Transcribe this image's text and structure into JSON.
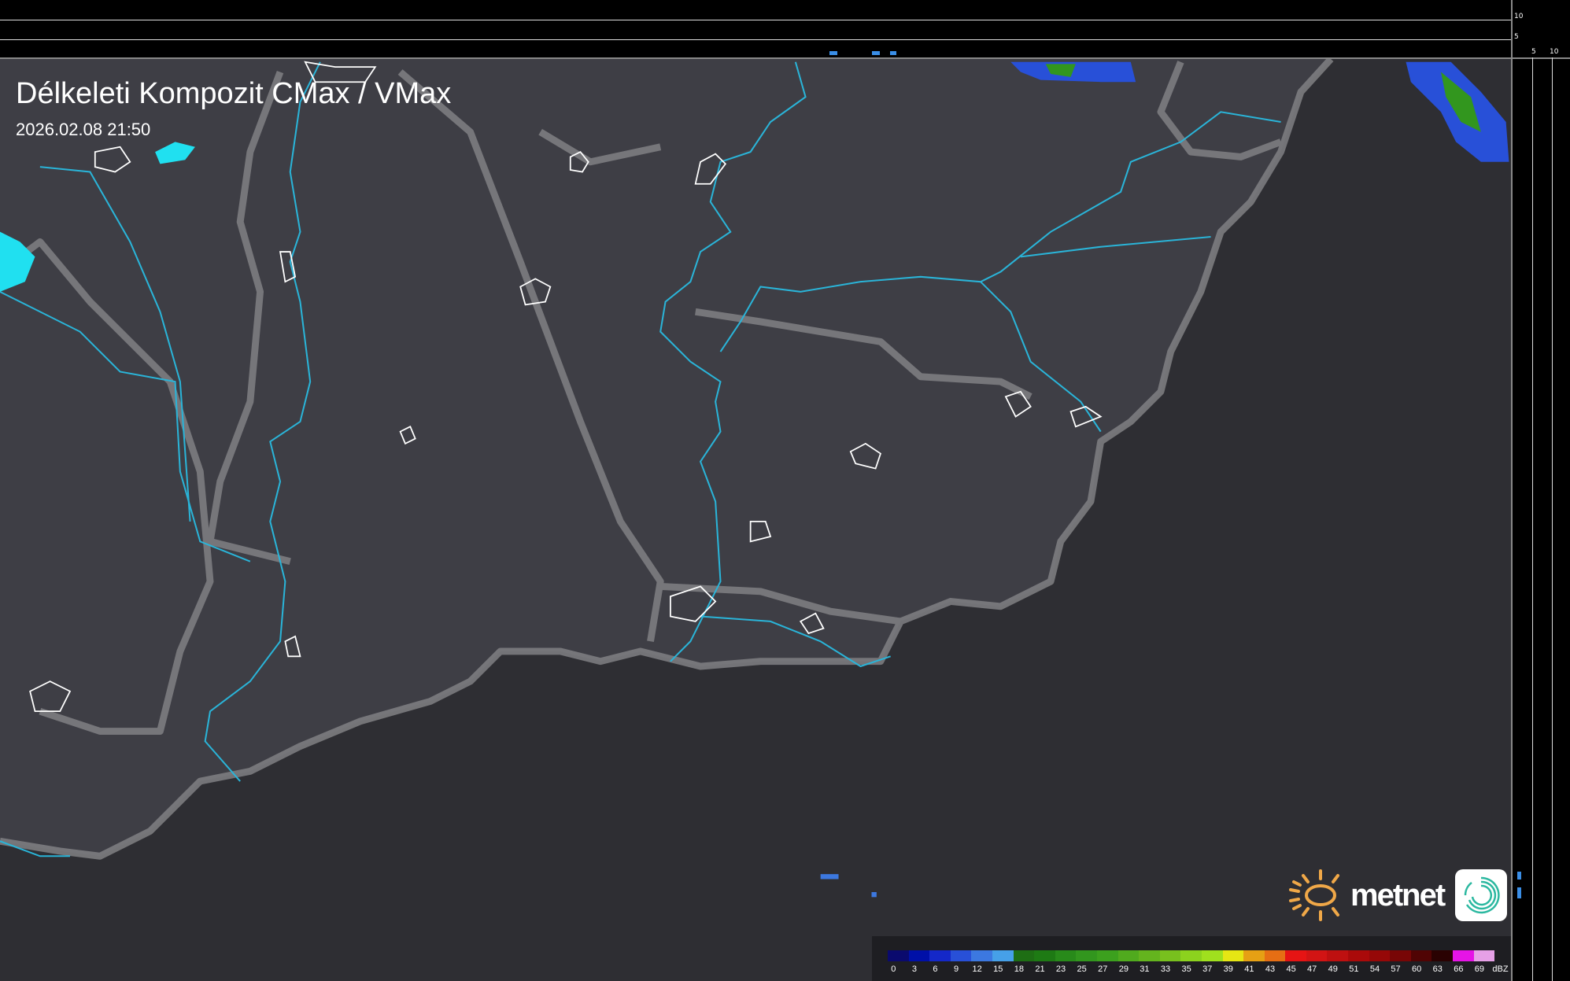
{
  "header": {
    "title": "Délkeleti Kompozit CMax / VMax",
    "timestamp": "2026.02.08 21:50"
  },
  "profile_axes": {
    "vertical_ticks": [
      "10",
      "5"
    ],
    "horizontal_ticks": [
      "5",
      "10"
    ]
  },
  "logo": {
    "text": "metnet",
    "sun_color": "#f0a848",
    "icon_color": "#2bb8a0"
  },
  "legend": {
    "unit": "dBZ",
    "labels": [
      "0",
      "3",
      "6",
      "9",
      "12",
      "15",
      "18",
      "21",
      "23",
      "25",
      "27",
      "29",
      "31",
      "33",
      "35",
      "37",
      "39",
      "41",
      "43",
      "45",
      "47",
      "49",
      "51",
      "54",
      "57",
      "60",
      "63",
      "66",
      "69"
    ],
    "colors": [
      "#0a0a6e",
      "#0010a8",
      "#1428c8",
      "#2850d8",
      "#3c78e0",
      "#46a0e8",
      "#1e6e14",
      "#1e7a14",
      "#288a1a",
      "#32961e",
      "#3ca01e",
      "#50aa1e",
      "#64b41e",
      "#78c01e",
      "#8cd21e",
      "#a0e01e",
      "#e6e614",
      "#e6a014",
      "#e66e14",
      "#e61414",
      "#d21414",
      "#be1010",
      "#aa0a0a",
      "#960808",
      "#780606",
      "#500404",
      "#2a0202",
      "#e614e6",
      "#e6a0e6",
      "#96e6f0"
    ]
  },
  "map_colors": {
    "land": "#3c3c42",
    "outside": "#2c2c30",
    "border": "#808084",
    "river": "#2ab4d8",
    "lake": "#20e0f0",
    "town": "#ffffff"
  }
}
